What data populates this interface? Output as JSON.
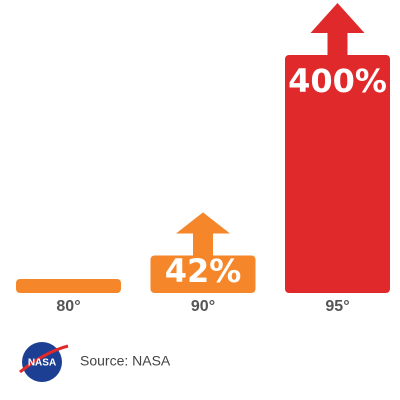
{
  "chart_data": {
    "type": "bar",
    "categories": [
      "80°",
      "90°",
      "95°"
    ],
    "values": [
      0,
      42,
      400
    ],
    "value_labels": [
      null,
      "42%",
      "400%"
    ],
    "colors": [
      "#f5862a",
      "#f5862a",
      "#e0292b"
    ],
    "source": "Source: NASA",
    "logo_text": "NASA"
  }
}
